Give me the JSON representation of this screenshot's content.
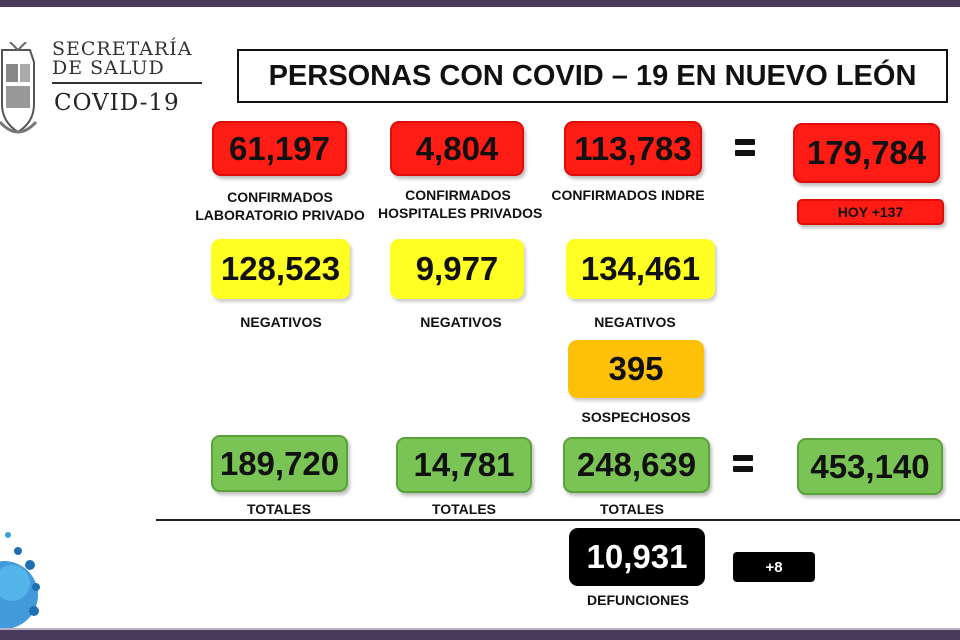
{
  "logo": {
    "line1": "SECRETARÍA",
    "line2": "DE SALUD",
    "line3": "COVID-19"
  },
  "title": "PERSONAS CON COVID – 19 EN NUEVO LEÓN",
  "confirmados": {
    "privado": {
      "value": "61,197",
      "label_1": "CONFIRMADOS",
      "label_2": "LABORATORIO PRIVADO"
    },
    "hospitales": {
      "value": "4,804",
      "label_1": "CONFIRMADOS",
      "label_2": "HOSPITALES PRIVADOS"
    },
    "indre": {
      "value": "113,783",
      "label": "CONFIRMADOS INDRE"
    },
    "total": "179,784",
    "hoy": "HOY +137"
  },
  "negativos": {
    "privado": {
      "value": "128,523",
      "label": "NEGATIVOS"
    },
    "hospitales": {
      "value": "9,977",
      "label": "NEGATIVOS"
    },
    "indre": {
      "value": "134,461",
      "label": "NEGATIVOS"
    }
  },
  "sospechosos": {
    "value": "395",
    "label": "SOSPECHOSOS"
  },
  "totales": {
    "privado": {
      "value": "189,720",
      "label": "TOTALES"
    },
    "hospitales": {
      "value": "14,781",
      "label": "TOTALES"
    },
    "indre": {
      "value": "248,639",
      "label": "TOTALES"
    },
    "grand_total": "453,140"
  },
  "defunciones": {
    "value": "10,931",
    "label": "DEFUNCIONES",
    "delta": "+8"
  },
  "colors": {
    "red": "#ff1c14",
    "yellow": "#ffff24",
    "orange": "#ffc107",
    "green": "#79c454",
    "black": "#000000",
    "frame": "#4a3a5c"
  },
  "icons": {
    "shield": "state-coat-of-arms-icon",
    "equals": "equals-sign-icon",
    "virus": "virus-decoration-icon"
  }
}
